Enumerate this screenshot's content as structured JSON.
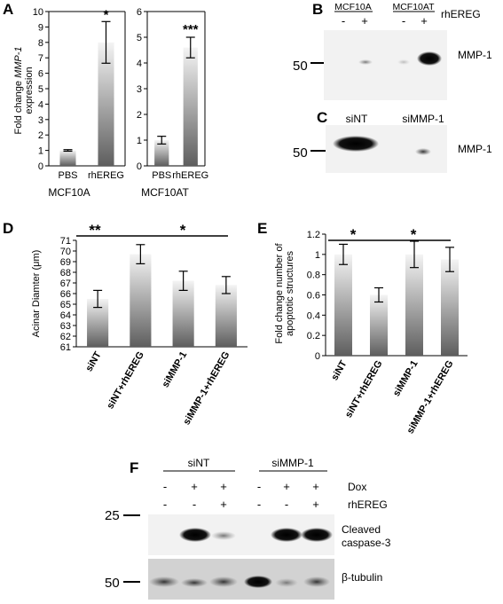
{
  "panels": {
    "A": {
      "letter": "A"
    },
    "B": {
      "letter": "B",
      "lanes": [
        "MCF10A",
        "MCF10AT"
      ],
      "signs": [
        "-",
        "+",
        "-",
        "+"
      ],
      "treatment": "rhEREG",
      "marker": "50",
      "band": "MMP-1"
    },
    "C": {
      "letter": "C",
      "lanes": [
        "siNT",
        "siMMP-1"
      ],
      "marker": "50",
      "band": "MMP-1"
    },
    "D": {
      "letter": "D"
    },
    "E": {
      "letter": "E"
    },
    "F": {
      "letter": "F",
      "groups": [
        "siNT",
        "siMMP-1"
      ],
      "dox_label": "Dox",
      "dox": [
        "-",
        "+",
        "+",
        "-",
        "+",
        "+"
      ],
      "ereg_label": "rhEREG",
      "ereg": [
        "-",
        "-",
        "+",
        "-",
        "-",
        "+"
      ],
      "marker_top": "25",
      "marker_bottom": "50",
      "band_top_1": "Cleaved",
      "band_top_2": "caspase-3",
      "band_bottom": "β-tubulin"
    }
  },
  "chart_data": [
    {
      "panel": "A",
      "type": "bar",
      "ylabel_pre": "Fold change ",
      "ylabel_gene": "MMP-1",
      "ylabel_line2": "expression",
      "xlabel": "MCF10A",
      "categories": [
        "PBS",
        "rhEREG"
      ],
      "values": [
        1.0,
        8.0
      ],
      "errors": [
        0.05,
        1.35
      ],
      "ylim": [
        0,
        10
      ],
      "yticks": [
        "0",
        "1",
        "2",
        "3",
        "4",
        "5",
        "6",
        "7",
        "8",
        "9",
        "10"
      ],
      "significance": "*"
    },
    {
      "panel": "A2",
      "type": "bar",
      "xlabel": "MCF10AT",
      "categories": [
        "PBS",
        "rhEREG"
      ],
      "values": [
        1.0,
        4.6
      ],
      "errors": [
        0.15,
        0.4
      ],
      "ylim": [
        0,
        6
      ],
      "yticks": [
        "0",
        "1",
        "2",
        "3",
        "4",
        "5",
        "6"
      ],
      "significance": "***"
    },
    {
      "panel": "D",
      "type": "bar",
      "ylabel": "Acinar Diamter (μm)",
      "categories": [
        "siNT",
        "siNT+rhEREG",
        "siMMP-1",
        "siMMP-1+rhEREG"
      ],
      "values": [
        65.5,
        69.7,
        67.2,
        66.8
      ],
      "errors": [
        0.8,
        0.9,
        0.9,
        0.8
      ],
      "ylim": [
        61,
        71
      ],
      "yticks": [
        "61",
        "62",
        "63",
        "64",
        "65",
        "66",
        "67",
        "68",
        "69",
        "70",
        "71"
      ],
      "significance": [
        "**",
        "*"
      ]
    },
    {
      "panel": "E",
      "type": "bar",
      "ylabel_line1": "Fold change number of",
      "ylabel_line2": "apoptotic structures",
      "categories": [
        "siNT",
        "siNT+rhEREG",
        "siMMP-1",
        "siMMP-1+rhEREG"
      ],
      "values": [
        1.0,
        0.6,
        1.0,
        0.95
      ],
      "errors": [
        0.1,
        0.07,
        0.13,
        0.12
      ],
      "ylim": [
        0,
        1.2
      ],
      "yticks": [
        "0",
        "0.2",
        "0.4",
        "0.6",
        "0.8",
        "1",
        "1.2"
      ],
      "significance": [
        "*",
        "*"
      ]
    }
  ]
}
